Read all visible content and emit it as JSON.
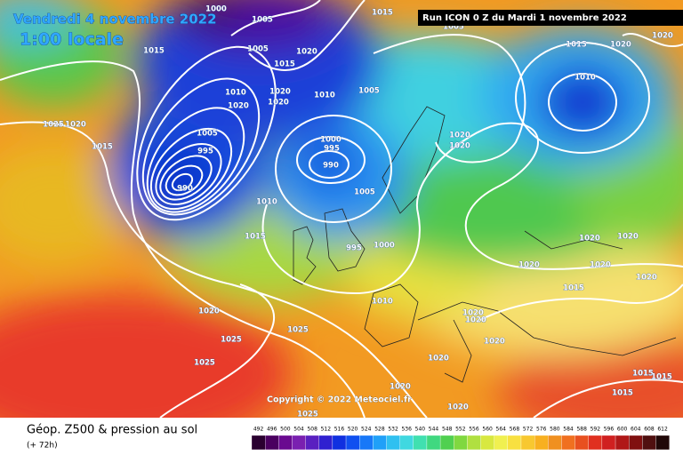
{
  "header": {
    "title": "Vendredi 4 novembre 2022",
    "time": "1:00 locale",
    "run": "Run ICON 0 Z du Mardi 1 novembre 2022"
  },
  "copyright": "Copyright © 2022 Meteociel.fr",
  "footer": {
    "product": "Géop. Z500 & pression au sol",
    "lead": "(+ 72h)"
  },
  "colorbar": {
    "labels": [
      492,
      496,
      500,
      504,
      508,
      512,
      516,
      520,
      524,
      528,
      532,
      536,
      540,
      544,
      548,
      552,
      556,
      560,
      564,
      568,
      572,
      576,
      580,
      584,
      588,
      592,
      596,
      600,
      604,
      608,
      612
    ]
  },
  "isobar_labels": [
    1000,
    1005,
    1015,
    1005,
    1005,
    1015,
    1020,
    1015,
    1010,
    1020,
    1020,
    1020,
    1010,
    1005,
    1025,
    1020,
    1015,
    1005,
    995,
    990,
    1000,
    995,
    990,
    1010,
    1005,
    1015,
    995,
    1000,
    1010,
    1020,
    1025,
    1025,
    1025,
    1020,
    1020,
    1020,
    1025,
    1020,
    1020,
    1010,
    1015,
    1020,
    1020,
    1020,
    1020,
    1020,
    1015,
    1020,
    1020,
    1020,
    1020,
    1015,
    1015,
    1015,
    1020
  ]
}
